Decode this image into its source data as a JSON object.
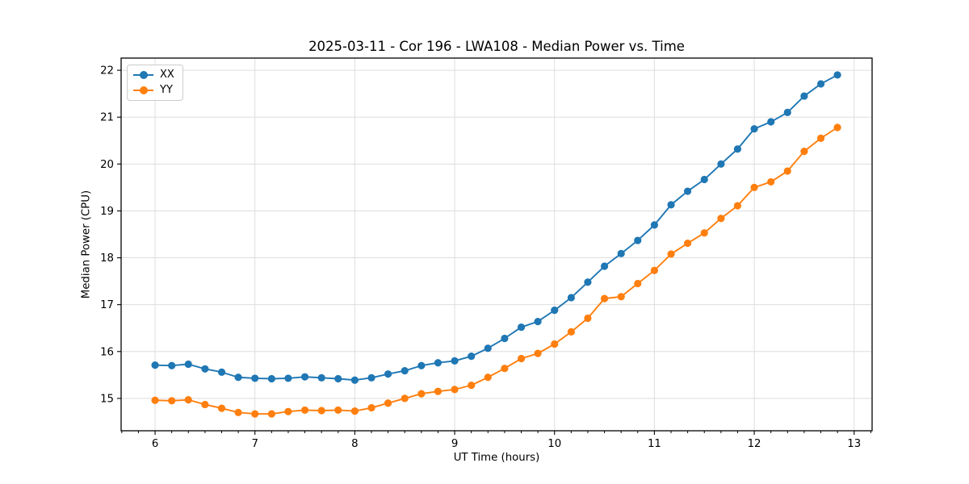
{
  "chart_data": {
    "type": "line",
    "title": "2025-03-11 - Cor 196 - LWA108 - Median Power vs. Time",
    "xlabel": "UT Time (hours)",
    "ylabel": "Median Power (CPU)",
    "xlim": [
      5.66,
      13.18
    ],
    "ylim": [
      14.31,
      22.26
    ],
    "x_ticks": [
      6,
      7,
      8,
      9,
      10,
      11,
      12,
      13
    ],
    "y_ticks": [
      15,
      16,
      17,
      18,
      19,
      20,
      21,
      22
    ],
    "x_minor_tick_step_hours": 0.1667,
    "grid": "major",
    "grid_color": "#dedede",
    "legend_position": "upper-left",
    "x": [
      6.0,
      6.167,
      6.333,
      6.5,
      6.667,
      6.833,
      7.0,
      7.167,
      7.333,
      7.5,
      7.667,
      7.833,
      8.0,
      8.167,
      8.333,
      8.5,
      8.667,
      8.833,
      9.0,
      9.167,
      9.333,
      9.5,
      9.667,
      9.833,
      10.0,
      10.167,
      10.333,
      10.5,
      10.667,
      10.833,
      11.0,
      11.167,
      11.333,
      11.5,
      11.667,
      11.833,
      12.0,
      12.167,
      12.333,
      12.5,
      12.667,
      12.833
    ],
    "series": [
      {
        "name": "XX",
        "color": "#1f77b4",
        "values": [
          15.71,
          15.7,
          15.73,
          15.63,
          15.56,
          15.45,
          15.43,
          15.42,
          15.43,
          15.46,
          15.44,
          15.42,
          15.39,
          15.44,
          15.52,
          15.59,
          15.7,
          15.76,
          15.8,
          15.9,
          16.07,
          16.28,
          16.52,
          16.64,
          16.88,
          17.15,
          17.48,
          17.82,
          18.09,
          18.37,
          18.7,
          19.13,
          19.42,
          19.67,
          20.0,
          20.32,
          20.75,
          20.9,
          21.1,
          21.45,
          21.71,
          21.9
        ]
      },
      {
        "name": "YY",
        "color": "#ff7f0e",
        "values": [
          14.96,
          14.95,
          14.97,
          14.87,
          14.79,
          14.7,
          14.67,
          14.67,
          14.72,
          14.75,
          14.74,
          14.75,
          14.73,
          14.8,
          14.9,
          15.0,
          15.1,
          15.15,
          15.19,
          15.28,
          15.45,
          15.64,
          15.85,
          15.96,
          16.16,
          16.42,
          16.71,
          17.13,
          17.17,
          17.45,
          17.73,
          18.08,
          18.31,
          18.53,
          18.84,
          19.11,
          19.5,
          19.62,
          19.85,
          20.27,
          20.55,
          20.78
        ]
      }
    ]
  }
}
